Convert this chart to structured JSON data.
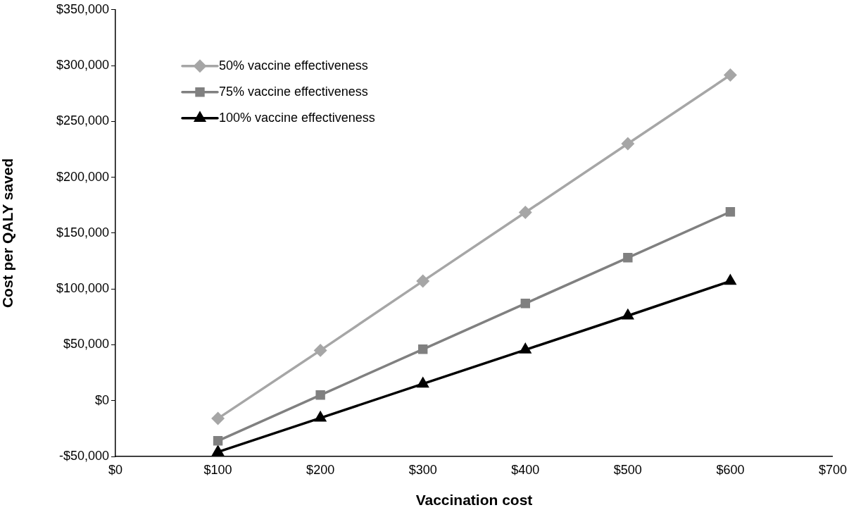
{
  "chart_data": {
    "type": "line",
    "xlabel": "Vaccination cost",
    "ylabel": "Cost per QALY saved",
    "x": [
      100,
      200,
      300,
      400,
      500,
      600
    ],
    "series": [
      {
        "name": "50% vaccine effectiveness",
        "color": "#a6a6a6",
        "marker": "diamond",
        "values": [
          -16000,
          45000,
          107000,
          168500,
          230000,
          291500
        ]
      },
      {
        "name": "75% vaccine effectiveness",
        "color": "#808080",
        "marker": "square",
        "values": [
          -36000,
          5000,
          46000,
          87000,
          128000,
          169000
        ]
      },
      {
        "name": "100% vaccine effectiveness",
        "color": "#000000",
        "marker": "triangle",
        "values": [
          -46000,
          -15500,
          15000,
          45500,
          76000,
          107000
        ]
      }
    ],
    "xlim": [
      0,
      700
    ],
    "xticks": [
      {
        "value": 0,
        "label": "$0"
      },
      {
        "value": 100,
        "label": "$100"
      },
      {
        "value": 200,
        "label": "$200"
      },
      {
        "value": 300,
        "label": "$300"
      },
      {
        "value": 400,
        "label": "$400"
      },
      {
        "value": 500,
        "label": "$500"
      },
      {
        "value": 600,
        "label": "$600"
      },
      {
        "value": 700,
        "label": "$700"
      }
    ],
    "ylim": [
      -50000,
      350000
    ],
    "yticks": [
      {
        "value": -50000,
        "label": "-$50,000"
      },
      {
        "value": 0,
        "label": "$0"
      },
      {
        "value": 50000,
        "label": "$50,000"
      },
      {
        "value": 100000,
        "label": "$100,000"
      },
      {
        "value": 150000,
        "label": "$150,000"
      },
      {
        "value": 200000,
        "label": "$200,000"
      },
      {
        "value": 250000,
        "label": "$250,000"
      },
      {
        "value": 300000,
        "label": "$300,000"
      },
      {
        "value": 350000,
        "label": "$350,000"
      }
    ],
    "grid": false,
    "legend": "top left",
    "line_style": "solid"
  }
}
